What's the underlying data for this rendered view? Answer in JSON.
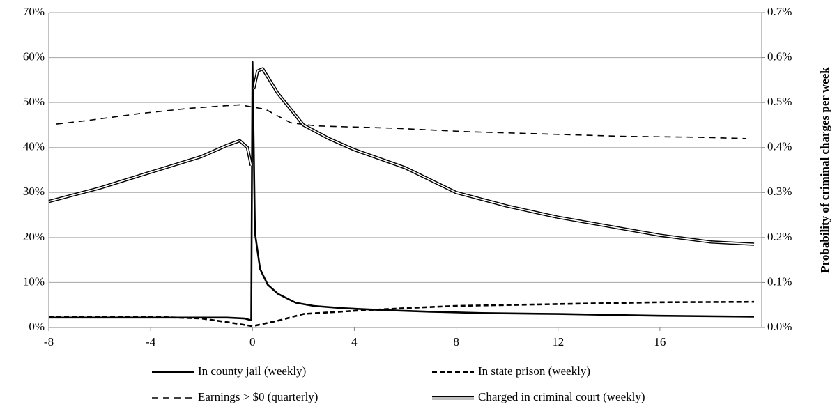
{
  "chart_data": {
    "type": "line",
    "xlim": [
      -8,
      20
    ],
    "xticks": [
      -8,
      -4,
      0,
      4,
      8,
      12,
      16
    ],
    "ylim": [
      0,
      70
    ],
    "yticks": [
      {
        "value": 0,
        "label": "0%"
      },
      {
        "value": 10,
        "label": "10%"
      },
      {
        "value": 20,
        "label": "20%"
      },
      {
        "value": 30,
        "label": "30%"
      },
      {
        "value": 40,
        "label": "40%"
      },
      {
        "value": 50,
        "label": "50%"
      },
      {
        "value": 60,
        "label": "60%"
      },
      {
        "value": 70,
        "label": "70%"
      }
    ],
    "y2lim": [
      0,
      0.7
    ],
    "y2ticks": [
      {
        "value": 0,
        "label": "0.0%"
      },
      {
        "value": 0.1,
        "label": "0.1%"
      },
      {
        "value": 0.2,
        "label": "0.2%"
      },
      {
        "value": 0.3,
        "label": "0.3%"
      },
      {
        "value": 0.4,
        "label": "0.4%"
      },
      {
        "value": 0.5,
        "label": "0.5%"
      },
      {
        "value": 0.6,
        "label": "0.6%"
      },
      {
        "value": 0.7,
        "label": "0.7%"
      }
    ],
    "y2label": "Probability of criminal charges per week",
    "grid": true,
    "legend": "bottom",
    "series": [
      {
        "name": "In county jail (weekly)",
        "color": "#000000",
        "style": "solid",
        "x": [
          -8,
          -4,
          -1,
          -0.3,
          -0.05,
          0,
          0.1,
          0.3,
          0.6,
          1,
          1.7,
          2.4,
          3.5,
          5,
          7,
          9,
          12,
          14,
          16,
          19.7
        ],
        "values": [
          2.2,
          2.2,
          2.2,
          2.0,
          1.6,
          59,
          21,
          13,
          9.5,
          7.5,
          5.5,
          4.8,
          4.3,
          3.9,
          3.5,
          3.2,
          3.0,
          2.8,
          2.6,
          2.4
        ]
      },
      {
        "name": "In state prison (weekly)",
        "color": "#000000",
        "style": "dashed",
        "x": [
          -8,
          -4,
          -2,
          -1,
          0,
          1,
          2,
          4,
          6,
          8,
          10,
          12,
          14,
          16,
          19.7
        ],
        "values": [
          2.4,
          2.4,
          2.0,
          1.2,
          0.3,
          1.5,
          3.0,
          3.7,
          4.3,
          4.8,
          5.0,
          5.2,
          5.4,
          5.6,
          5.7
        ]
      },
      {
        "name": "Earnings > $0 (quarterly)",
        "color": "#000000",
        "style": "thin-dashed",
        "x": [
          -7.7,
          -6.5,
          -4.5,
          -2.5,
          -0.5,
          0.5,
          1.5,
          2.5,
          5.5,
          8.5,
          11.5,
          14.5,
          17.5,
          19.4
        ],
        "values": [
          45.2,
          46,
          47.5,
          48.7,
          49.5,
          48.5,
          45.5,
          44.8,
          44.3,
          43.5,
          43.0,
          42.5,
          42.3,
          42.0
        ]
      },
      {
        "name": "Charged in criminal court (weekly)",
        "color": "#000000",
        "style": "double",
        "axis": "y2",
        "x": [
          -8,
          -6,
          -4,
          -2,
          -1,
          -0.5,
          -0.2,
          -0.05,
          0,
          0.05,
          0.2,
          0.4,
          1,
          2,
          3,
          4,
          6,
          8,
          10,
          12,
          14,
          16,
          18,
          19.7
        ],
        "values": [
          0.28,
          0.31,
          0.345,
          0.38,
          0.405,
          0.415,
          0.4,
          0.36,
          null,
          0.53,
          0.57,
          0.575,
          0.52,
          0.45,
          0.42,
          0.395,
          0.355,
          0.3,
          0.27,
          0.245,
          0.225,
          0.205,
          0.19,
          0.185
        ]
      }
    ]
  }
}
